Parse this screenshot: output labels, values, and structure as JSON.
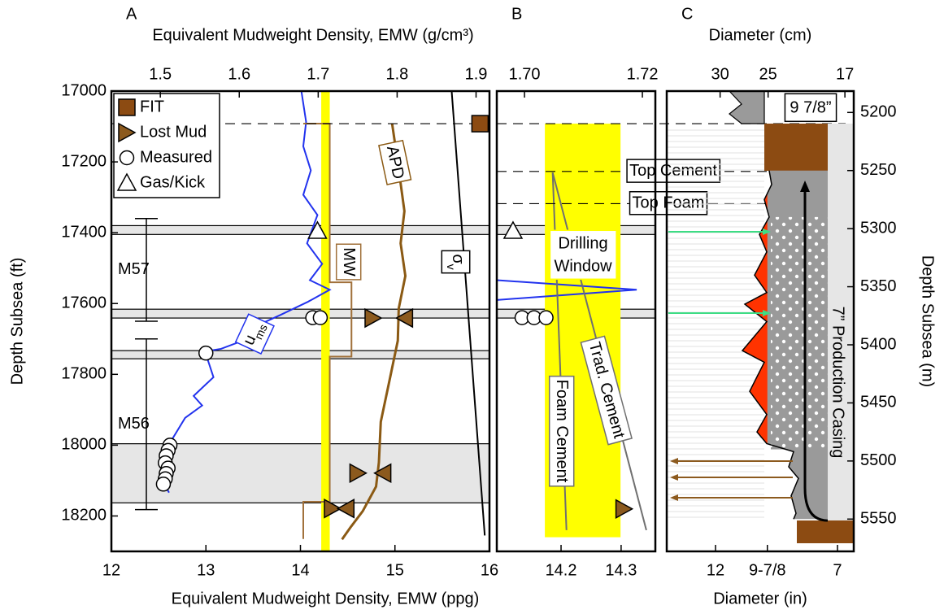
{
  "chart_data": [
    {
      "type": "well-log",
      "panel_label": "A",
      "x2label": "Equivalent Mudweight Density, EMW (g/cm³)",
      "xlabel": "Equivalent Mudweight Density, EMW (ppg)",
      "ylabel": "Depth Subsea (ft)",
      "xlim": [
        12,
        16
      ],
      "xticks": [
        12,
        13,
        14,
        15,
        16
      ],
      "x2lim": [
        1.438,
        1.917
      ],
      "x2ticks": [
        1.5,
        1.6,
        1.7,
        1.8,
        1.9
      ],
      "ylim": [
        17000,
        18300
      ],
      "yticks": [
        17000,
        17200,
        17400,
        17600,
        17800,
        18000,
        18200
      ],
      "y_axis": "left",
      "bands": [
        [
          17380,
          17405
        ],
        [
          17616,
          17641
        ],
        [
          17733,
          17756
        ],
        [
          17996,
          18163
        ]
      ],
      "band_color": "#e6e6e6",
      "dashed": [
        17092
      ],
      "window": {
        "x": [
          14.22,
          14.31
        ],
        "y": [
          17000,
          18300
        ],
        "color": "#ffff00"
      },
      "formations": [
        {
          "label": "M57",
          "depths": [
            17360,
            17650
          ]
        },
        {
          "label": "M56",
          "depths": [
            17700,
            18182
          ]
        }
      ],
      "series": [
        {
          "name": "u",
          "name_sub": "ms",
          "color": "#2233ee",
          "x": [
            14.01,
            14.06,
            14.03,
            14.11,
            14.03,
            14.18,
            14.07,
            14.23,
            14.1,
            14.31,
            14.08,
            13.79,
            13.56,
            13.39,
            13.16,
            12.99,
            13.08,
            12.87,
            12.96,
            12.78,
            12.65,
            12.56,
            12.53,
            12.61
          ],
          "y": [
            17000,
            17087,
            17156,
            17224,
            17293,
            17350,
            17430,
            17488,
            17534,
            17561,
            17595,
            17632,
            17660,
            17705,
            17728,
            17735,
            17808,
            17861,
            17888,
            17923,
            17980,
            18037,
            18095,
            18134
          ]
        },
        {
          "name": "APD",
          "color": "#8b5a14",
          "x": [
            14.97,
            15.03,
            15.1,
            15.06,
            15.11,
            15.04,
            15.03,
            14.94,
            14.85,
            14.83,
            14.8,
            14.66,
            14.53,
            14.44
          ],
          "y": [
            17092,
            17202,
            17339,
            17430,
            17522,
            17614,
            17705,
            17820,
            17934,
            18049,
            18117,
            18186,
            18232,
            18266
          ]
        },
        {
          "name": "MW",
          "color": "#a0703a",
          "x": [
            14.03,
            14.31,
            14.31,
            14.54,
            14.54,
            14.31,
            14.31,
            14.03,
            14.03
          ],
          "y": [
            17092,
            17092,
            17540,
            17540,
            17750,
            17750,
            18160,
            18160,
            18265
          ]
        },
        {
          "name": "σ",
          "name_sub": "v",
          "color": "#000000",
          "x": [
            15.6,
            15.95
          ],
          "y": [
            17000,
            18255
          ]
        }
      ],
      "markers": [
        {
          "name": "FIT",
          "shape": "square",
          "color": "#8c4b12",
          "x": [
            15.9
          ],
          "y": [
            17092
          ]
        },
        {
          "name": "Lost Mud",
          "shape": "triangle-right",
          "color": "#8c5a1e",
          "x": [
            [
              14.77,
              15.1
            ],
            [
              14.61,
              14.87
            ],
            [
              14.34,
              14.48
            ]
          ],
          "y": [
            17641,
            18079,
            18179
          ]
        },
        {
          "name": "Measured",
          "shape": "circle",
          "color": "#ffffff",
          "x": [
            14.13,
            14.21,
            13.0,
            12.62,
            12.6,
            12.58,
            12.57,
            12.6,
            12.58,
            12.57,
            12.55
          ],
          "y": [
            17640,
            17640,
            17740,
            18000,
            18015,
            18030,
            18050,
            18065,
            18080,
            18095,
            18110
          ]
        },
        {
          "name": "Gas/Kick",
          "shape": "triangle-up",
          "color": "#ffffff",
          "x": [
            14.18
          ],
          "y": [
            17395
          ]
        }
      ],
      "legend": "upper left"
    },
    {
      "type": "well-log",
      "panel_label": "B",
      "xlim": [
        14.093,
        14.357
      ],
      "xticks": [
        14.2,
        14.3
      ],
      "x2lim": [
        1.6953,
        1.7222
      ],
      "x2ticks": [
        {
          "value": 1.7,
          "label": "1.70"
        },
        1.72
      ],
      "ylim": [
        17000,
        18300
      ],
      "bands": [
        [
          17380,
          17405
        ],
        [
          17616,
          17641
        ]
      ],
      "band_color": "#e6e6e6",
      "dashed": [
        17092,
        17227,
        17318
      ],
      "window": {
        "x": [
          14.173,
          14.299
        ],
        "y": [
          17092,
          18260
        ],
        "color": "#ffff00",
        "label": [
          "Drilling",
          "Window"
        ]
      },
      "series": [
        {
          "color": "#2233ee",
          "x": [
            14.093,
            14.326,
            14.093
          ],
          "y": [
            17534,
            17561,
            17590
          ]
        },
        {
          "name": "Foam Cement",
          "color": "#707070",
          "x": [
            14.186,
            14.209
          ],
          "y": [
            17230,
            18240
          ]
        },
        {
          "name": "Trad. Cement",
          "color": "#707070",
          "x": [
            14.186,
            14.342
          ],
          "y": [
            17230,
            18240
          ]
        }
      ],
      "markers": [
        {
          "shape": "triangle-up",
          "color": "#ffffff",
          "x": [
            14.12
          ],
          "y": [
            17395
          ]
        },
        {
          "shape": "circle",
          "color": "#ffffff",
          "x": [
            14.135,
            14.155,
            14.175
          ],
          "y": [
            17640,
            17640,
            17640
          ]
        },
        {
          "shape": "triangle-right",
          "color": "#8c5a1e",
          "x": [
            14.305
          ],
          "y": [
            18180
          ]
        }
      ],
      "depth_labels": [
        {
          "label": "Top Cement",
          "depth": 17227
        },
        {
          "label": "Top Foam",
          "depth": 17318
        }
      ]
    },
    {
      "type": "caliper",
      "panel_label": "C",
      "x2label": "Diameter (cm)",
      "xlabel": "Diameter (in)",
      "ylabel": "Depth Subsea (m)",
      "xlim": [
        14,
        6.333
      ],
      "xticks": [
        12,
        {
          "value": 9.875,
          "label": "9-7/8"
        },
        7
      ],
      "x2lim": [
        35.56,
        16.08
      ],
      "x2ticks": [
        30,
        25,
        17
      ],
      "ylim": [
        5181.6,
        5577.8
      ],
      "yticks": [
        5200,
        5250,
        5300,
        5350,
        5400,
        5450,
        5500,
        5550
      ],
      "y_axis": "right",
      "caliper": {
        "color": "#000000",
        "x": [
          9.8,
          9.7,
          10.0,
          9.8,
          10.2,
          9.9,
          10.4,
          9.9,
          10.8,
          9.9,
          10.9,
          10.0,
          10.6,
          9.9,
          10.3,
          9.9,
          8.8,
          9.0,
          8.6,
          8.9,
          8.7,
          8.8
        ],
        "y": [
          5250,
          5262,
          5275,
          5290,
          5305,
          5320,
          5340,
          5355,
          5365,
          5380,
          5405,
          5415,
          5440,
          5460,
          5475,
          5485,
          5492,
          5505,
          5515,
          5530,
          5545,
          5550
        ]
      },
      "fill_color": "#9a9a9a",
      "washout_color": "#ff3300",
      "annotations": [
        "9 7/8”",
        "7” Production Casing"
      ]
    }
  ]
}
